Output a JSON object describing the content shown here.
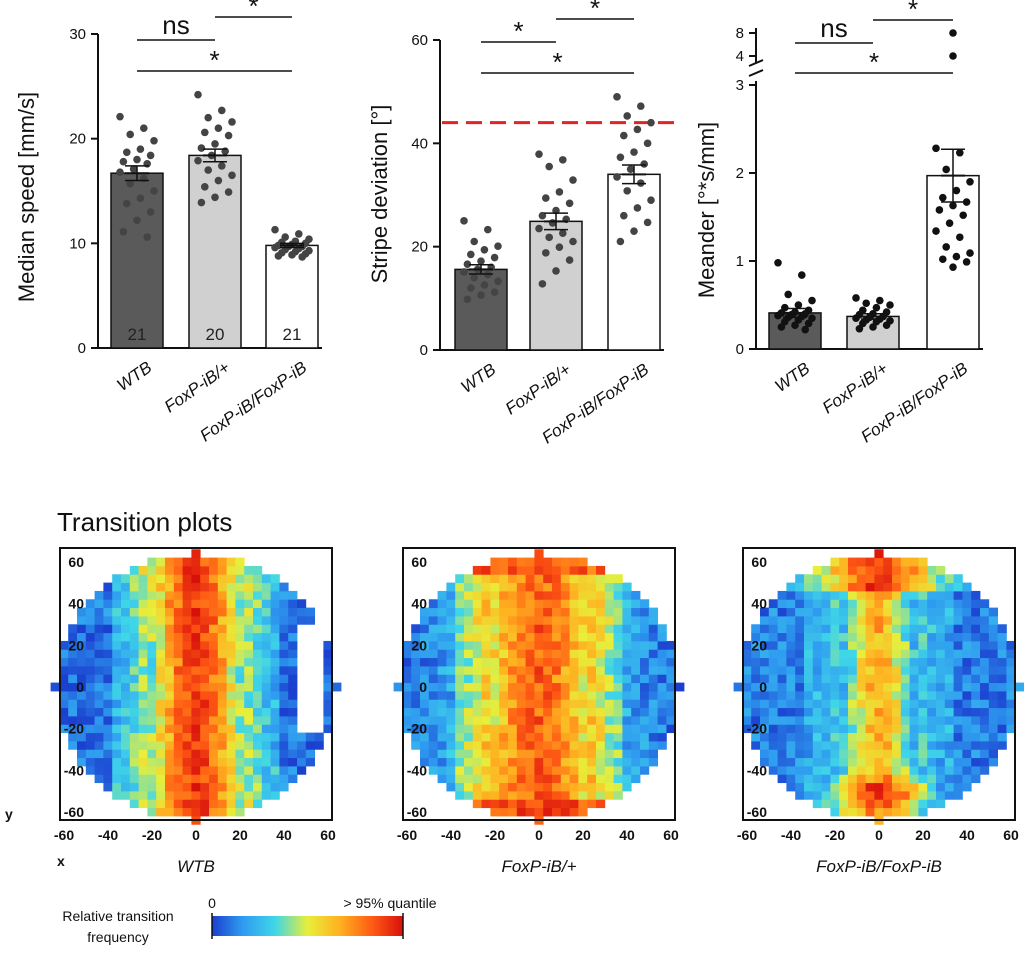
{
  "chart_data": [
    {
      "id": "speed",
      "type": "bar",
      "ylabel": "Median speed [mm/s]",
      "ylim": [
        0,
        30
      ],
      "yticks": [
        0,
        10,
        20,
        30
      ],
      "categories": [
        "WTB",
        "FoxP-iB/+",
        "FoxP-iB/FoxP-iB"
      ],
      "values": [
        16.7,
        18.4,
        9.8
      ],
      "sem": [
        0.7,
        0.6,
        0.2
      ],
      "n_labels": [
        "21",
        "20",
        "21"
      ],
      "bar_colors": [
        "#5a5a5a",
        "#d0d0d0",
        "#ffffff"
      ],
      "points": [
        [
          22.1,
          21.0,
          20.4,
          19.8,
          19.0,
          18.7,
          18.4,
          18.0,
          17.8,
          17.6,
          17.1,
          16.8,
          16.2,
          15.7,
          15.0,
          14.3,
          13.8,
          13.0,
          12.2,
          11.1,
          10.6
        ],
        [
          24.2,
          22.7,
          22.0,
          21.6,
          21.0,
          20.6,
          20.3,
          19.5,
          19.1,
          18.8,
          18.4,
          17.9,
          17.4,
          17.0,
          16.5,
          16.0,
          15.4,
          14.9,
          14.4,
          13.9
        ],
        [
          11.3,
          10.9,
          10.6,
          10.4,
          10.2,
          10.1,
          10.0,
          9.9,
          9.8,
          9.7,
          9.7,
          9.6,
          9.5,
          9.4,
          9.3,
          9.2,
          9.1,
          9.0,
          8.9,
          8.8,
          8.7
        ]
      ],
      "significance": [
        {
          "from": 0,
          "to": 1,
          "label": "ns"
        },
        {
          "from": 1,
          "to": 2,
          "label": "*"
        },
        {
          "from": 0,
          "to": 2,
          "label": "*"
        }
      ]
    },
    {
      "id": "stripe",
      "type": "bar",
      "ylabel": "Stripe deviation [°]",
      "ylim": [
        0,
        60
      ],
      "yticks": [
        0,
        20,
        40,
        60
      ],
      "categories": [
        "WTB",
        "FoxP-iB/+",
        "FoxP-iB/FoxP-iB"
      ],
      "values": [
        15.6,
        24.9,
        34.0
      ],
      "sem": [
        0.9,
        1.6,
        1.8
      ],
      "reference_line": 44,
      "reference_color": "#e52222",
      "bar_colors": [
        "#5a5a5a",
        "#d0d0d0",
        "#ffffff"
      ],
      "points": [
        [
          25.0,
          23.3,
          21.0,
          20.1,
          19.4,
          18.5,
          17.9,
          17.2,
          16.6,
          16.0,
          15.6,
          15.1,
          14.6,
          14.0,
          13.3,
          12.6,
          12.0,
          11.2,
          10.6,
          9.8
        ],
        [
          37.9,
          36.8,
          35.5,
          32.9,
          30.6,
          29.4,
          28.4,
          27.0,
          26.0,
          25.3,
          24.6,
          23.5,
          22.6,
          21.8,
          21.0,
          19.9,
          18.8,
          17.4,
          15.3,
          12.8
        ],
        [
          49.0,
          47.2,
          45.3,
          44.0,
          42.7,
          41.5,
          40.0,
          38.3,
          37.3,
          36.0,
          35.0,
          33.5,
          32.3,
          30.8,
          29.0,
          27.5,
          26.0,
          24.7,
          23.0,
          21.0
        ]
      ],
      "significance": [
        {
          "from": 0,
          "to": 1,
          "label": "*"
        },
        {
          "from": 1,
          "to": 2,
          "label": "*"
        },
        {
          "from": 0,
          "to": 2,
          "label": "*"
        }
      ]
    },
    {
      "id": "meander",
      "type": "bar",
      "ylabel": "Meander [°*s/mm]",
      "ylim": [
        0,
        3
      ],
      "yticks": [
        0,
        1,
        2,
        3
      ],
      "broken_axis_upper_ticks": [
        4,
        8
      ],
      "categories": [
        "WTB",
        "FoxP-iB/+",
        "FoxP-iB/FoxP-iB"
      ],
      "values": [
        0.41,
        0.37,
        1.97
      ],
      "sem": [
        0.05,
        0.03,
        0.3
      ],
      "bar_colors": [
        "#5a5a5a",
        "#d0d0d0",
        "#ffffff"
      ],
      "points": [
        [
          0.98,
          0.84,
          0.62,
          0.55,
          0.5,
          0.47,
          0.44,
          0.42,
          0.41,
          0.4,
          0.39,
          0.38,
          0.37,
          0.36,
          0.35,
          0.33,
          0.31,
          0.29,
          0.27,
          0.25,
          0.22
        ],
        [
          0.58,
          0.55,
          0.52,
          0.5,
          0.47,
          0.44,
          0.42,
          0.4,
          0.39,
          0.37,
          0.36,
          0.35,
          0.34,
          0.33,
          0.32,
          0.31,
          0.29,
          0.27,
          0.25,
          0.23
        ],
        [
          2.28,
          2.23,
          2.04,
          1.9,
          1.8,
          1.72,
          1.67,
          1.63,
          1.58,
          1.52,
          1.43,
          1.34,
          1.27,
          1.16,
          1.09,
          1.05,
          1.02,
          0.99,
          0.93
        ]
      ],
      "upper_points": [
        7.6,
        4.2
      ],
      "significance": [
        {
          "from": 0,
          "to": 1,
          "label": "ns"
        },
        {
          "from": 1,
          "to": 2,
          "label": "*"
        },
        {
          "from": 0,
          "to": 2,
          "label": "*"
        }
      ]
    }
  ],
  "transition_plots": {
    "title": "Transition plots",
    "type": "heatmap",
    "x_ticks": [
      -60,
      -40,
      -20,
      0,
      20,
      40,
      60
    ],
    "y_ticks": [
      60,
      40,
      20,
      0,
      -20,
      -40,
      -60
    ],
    "x_axis_label": "x",
    "y_axis_label": "y",
    "panels": [
      {
        "caption": "WTB"
      },
      {
        "caption": "FoxP-iB/+"
      },
      {
        "caption": "FoxP-iB/FoxP-iB"
      }
    ],
    "colorbar": {
      "label_line1": "Relative transition",
      "label_line2": "frequency",
      "min_label": "0",
      "max_label": "> 95% quantile",
      "colors": [
        "#1b3fcf",
        "#2f9bf0",
        "#3fd6e8",
        "#e8ee3a",
        "#ffb020",
        "#ff5a14",
        "#d8100c"
      ]
    }
  }
}
